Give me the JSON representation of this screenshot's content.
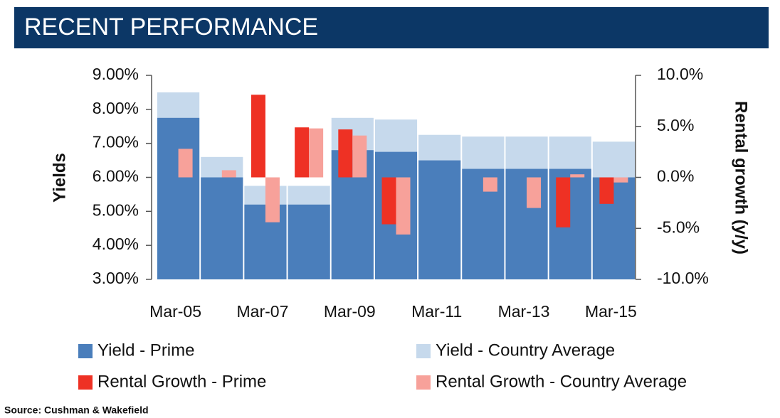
{
  "chart_data": {
    "type": "bar",
    "title": "RECENT PERFORMANCE",
    "y_label": "Yields",
    "y2_label": "Rental growth (y/y)",
    "categories": [
      "Mar-05",
      null,
      "Mar-07",
      null,
      "Mar-09",
      null,
      "Mar-11",
      null,
      "Mar-13",
      null,
      "Mar-15"
    ],
    "series": [
      {
        "name": "Yield - Prime",
        "color": "#4a7ebb",
        "values": [
          7.75,
          6.0,
          5.2,
          5.2,
          6.8,
          6.75,
          6.5,
          6.25,
          6.25,
          6.25,
          6.0
        ]
      },
      {
        "name": "Yield - Country Average",
        "color": "#c6d9ec",
        "values": [
          8.5,
          6.6,
          5.75,
          5.75,
          7.75,
          7.7,
          7.25,
          7.2,
          7.2,
          7.2,
          7.05
        ]
      },
      {
        "name": "Rental Growth - Prime",
        "color": "#ee3124",
        "axis": "y2",
        "values": [
          null,
          null,
          8.1,
          4.9,
          4.7,
          -4.6,
          null,
          null,
          null,
          -4.9,
          -2.6
        ]
      },
      {
        "name": "Rental Growth - Country Average",
        "color": "#f7a19a",
        "axis": "y2",
        "values": [
          2.8,
          0.7,
          -4.4,
          4.8,
          4.1,
          -5.6,
          null,
          -1.4,
          -3.0,
          0.3,
          -0.5
        ]
      }
    ],
    "ylim": [
      3,
      9
    ],
    "yticks": [
      {
        "value": 3,
        "label": "3.00%"
      },
      {
        "value": 4,
        "label": "4.00%"
      },
      {
        "value": 5,
        "label": "5.00%"
      },
      {
        "value": 6,
        "label": "6.00%"
      },
      {
        "value": 7,
        "label": "7.00%"
      },
      {
        "value": 8,
        "label": "8.00%"
      },
      {
        "value": 9,
        "label": "9.00%"
      }
    ],
    "y2lim": [
      -10,
      10
    ],
    "y2ticks": [
      {
        "value": -10,
        "label": "-10.0%"
      },
      {
        "value": -5,
        "label": "-5.0%"
      },
      {
        "value": 0,
        "label": "0.0%"
      },
      {
        "value": 5,
        "label": "5.0%"
      },
      {
        "value": 10,
        "label": "10.0%"
      }
    ],
    "source": "Source: Cushman & Wakefield"
  }
}
